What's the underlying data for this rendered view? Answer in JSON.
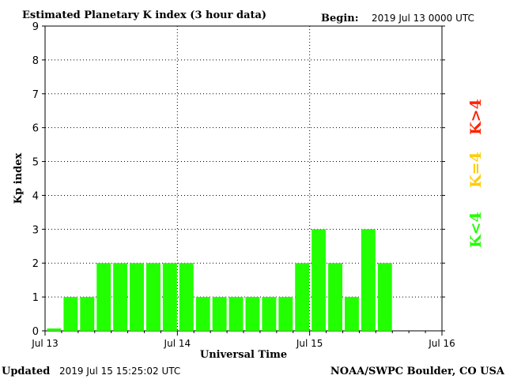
{
  "header": {
    "title": "Estimated Planetary K index (3 hour data)",
    "begin_label": "Begin:",
    "begin_value": "2019 Jul 13 0000 UTC"
  },
  "footer": {
    "updated_label": "Updated",
    "updated_value": "2019 Jul 15 15:25:02 UTC",
    "credit": "NOAA/SWPC Boulder, CO USA"
  },
  "legend": {
    "items": [
      {
        "label": "K<4",
        "color": "#22ff00"
      },
      {
        "label": "K=4",
        "color": "#ffcc00"
      },
      {
        "label": "K>4",
        "color": "#ff2200"
      }
    ]
  },
  "chart_data": {
    "type": "bar",
    "title": "Estimated Planetary K index (3 hour data)",
    "xlabel": "Universal Time",
    "ylabel": "Kp index",
    "ylim": [
      0,
      9
    ],
    "yticks": [
      "0",
      "1",
      "2",
      "3",
      "4",
      "5",
      "6",
      "7",
      "8",
      "9"
    ],
    "x_tick_labels": [
      "Jul 13",
      "Jul 14",
      "Jul 15",
      "Jul 16"
    ],
    "slots_per_day": 8,
    "total_slots": 24,
    "grid": "dotted",
    "bar_color": "#22ff00",
    "values": [
      0.07,
      1,
      1,
      2,
      2,
      2,
      2,
      2,
      2,
      1,
      1,
      1,
      1,
      1,
      1,
      2,
      3,
      2,
      1,
      3,
      2
    ]
  }
}
